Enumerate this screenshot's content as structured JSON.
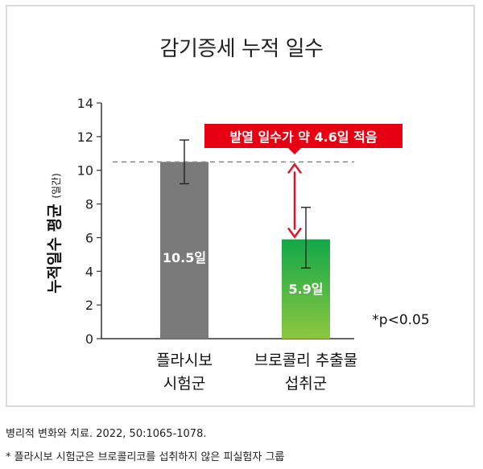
{
  "chart_data": {
    "type": "bar",
    "title": "감기증세 누적 일수",
    "ylabel": "누적일수 평균",
    "ylabel_unit": "(일간)",
    "ylim": [
      0,
      14
    ],
    "yticks": [
      0,
      2,
      4,
      6,
      8,
      10,
      12,
      14
    ],
    "categories": [
      "플라시보 시험군",
      "브로콜리 추출물 섭취군"
    ],
    "category_lines": [
      [
        "플라시보",
        "시험군"
      ],
      [
        "브로콜리 추출물",
        "섭취군"
      ]
    ],
    "values": [
      10.5,
      5.9
    ],
    "value_labels": [
      "10.5일",
      "5.9일"
    ],
    "error_bars": [
      [
        9.2,
        11.8
      ],
      [
        4.2,
        7.8
      ]
    ],
    "reference_line": 10.5,
    "callout": "발열 일수가 약 4.6일 적음",
    "significance": "*p<0.05",
    "colors": {
      "placebo_bar": "#7a7a7a",
      "broccoli_bar_top": "#12a84a",
      "broccoli_bar_bottom": "#8dc63f",
      "callout_bg": "#e60012",
      "arrow": "#d7182a"
    }
  },
  "footnotes": {
    "source": "병리적 변화와 치료. 2022, 50:1065-1078.",
    "note": "*  플라시보 시험군은 브로콜리코를 섭취하지 않은 피실험자 그룹"
  }
}
